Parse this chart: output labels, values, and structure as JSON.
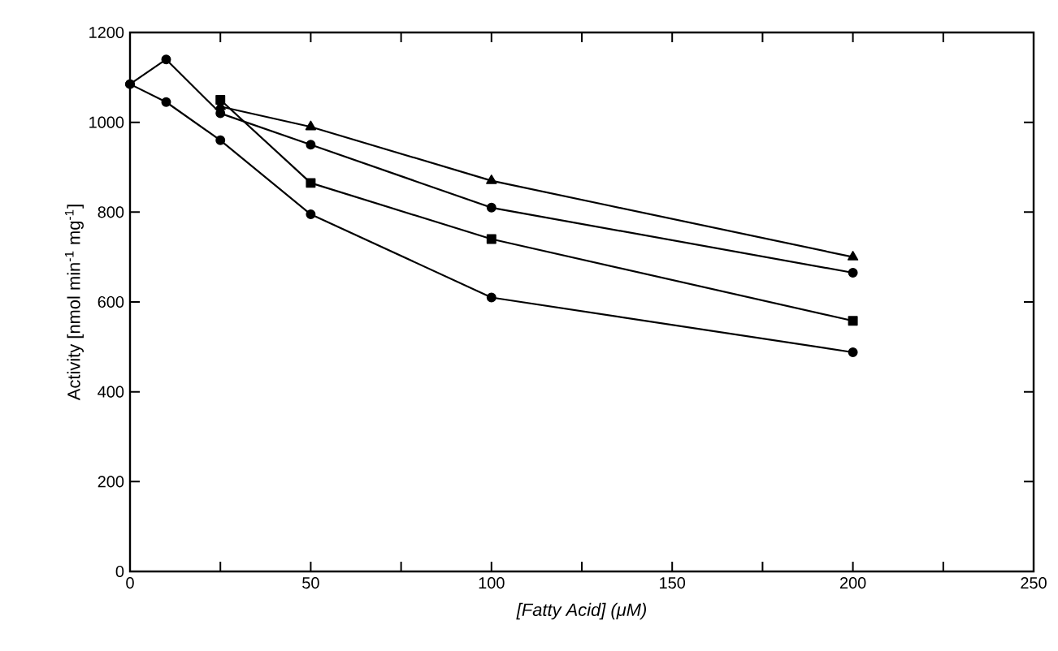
{
  "chart_data": {
    "type": "line",
    "xlabel": "[Fatty Acid] (μM)",
    "ylabel": "Activity [nmol min$^{-1}$ mg$^{-1}$]",
    "xlim": [
      0,
      250
    ],
    "ylim": [
      0,
      1200
    ],
    "xticks": [
      0,
      {
        "value": 25,
        "label": null
      },
      50,
      {
        "value": 75,
        "label": null
      },
      100,
      {
        "value": 125,
        "label": null
      },
      150,
      {
        "value": 175,
        "label": null
      },
      200,
      {
        "value": 225,
        "label": null
      },
      250
    ],
    "yticks": [
      0,
      200,
      400,
      600,
      800,
      1000,
      1200
    ],
    "grid": false,
    "line_style": "solid",
    "series": [
      {
        "color": "#000000",
        "marker": "circle",
        "x": [
          0,
          10,
          25,
          50,
          100,
          200
        ],
        "values": [
          1085,
          1045,
          960,
          795,
          610,
          488
        ]
      },
      {
        "color": "#000000",
        "marker": "circle",
        "x": [
          0,
          10,
          25,
          50,
          100,
          200
        ],
        "values": [
          1085,
          1140,
          1020,
          950,
          810,
          665
        ]
      },
      {
        "color": "#000000",
        "marker": "square",
        "x": [
          25,
          50,
          100,
          200
        ],
        "values": [
          1050,
          865,
          740,
          558
        ]
      },
      {
        "color": "#000000",
        "marker": "triangle",
        "x": [
          25,
          50,
          100,
          200
        ],
        "values": [
          1035,
          990,
          870,
          700
        ]
      }
    ]
  }
}
